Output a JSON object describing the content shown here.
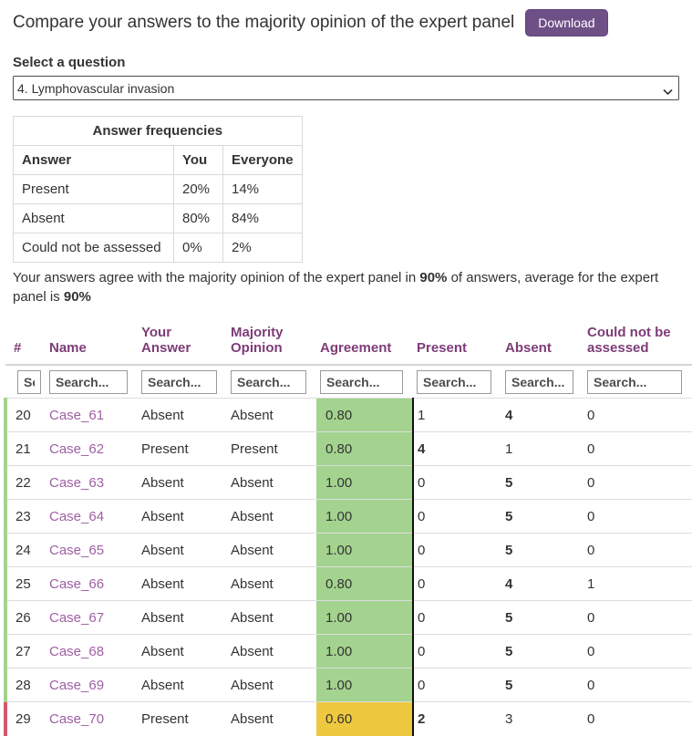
{
  "header": {
    "title": "Compare your answers to the majority opinion of the expert panel",
    "download_label": "Download"
  },
  "question_select": {
    "label": "Select a question",
    "selected": "4. Lymphovascular invasion"
  },
  "frequencies": {
    "title": "Answer frequencies",
    "columns": [
      "Answer",
      "You",
      "Everyone"
    ],
    "rows": [
      [
        "Present",
        "20%",
        "14%"
      ],
      [
        "Absent",
        "80%",
        "84%"
      ],
      [
        "Could not be assessed",
        "0%",
        "2%"
      ]
    ]
  },
  "summary": {
    "prefix": "Your answers agree with the majority opinion of the expert panel in ",
    "your_percent": "90%",
    "middle": " of answers, average for the expert panel is ",
    "panel_percent": "90%"
  },
  "cases_table": {
    "columns": [
      {
        "key": "num",
        "label": "#"
      },
      {
        "key": "name",
        "label": "Name"
      },
      {
        "key": "your_answer",
        "label": "Your\nAnswer"
      },
      {
        "key": "majority_opinion",
        "label": "Majority\nOpinion"
      },
      {
        "key": "agreement",
        "label": "Agreement"
      },
      {
        "key": "present",
        "label": "Present"
      },
      {
        "key": "absent",
        "label": "Absent"
      },
      {
        "key": "could_not_be_assessed",
        "label": "Could not be\nassessed"
      }
    ],
    "search_placeholder": "Search...",
    "rows": [
      {
        "num": "20",
        "name": "Case_61",
        "your_answer": "Absent",
        "majority_opinion": "Absent",
        "agreement": "0.80",
        "agreement_color": "green",
        "bar_color": "green",
        "present": {
          "v": "1",
          "bold": false
        },
        "absent": {
          "v": "4",
          "bold": true
        },
        "could_not_be_assessed": {
          "v": "0",
          "bold": false
        }
      },
      {
        "num": "21",
        "name": "Case_62",
        "your_answer": "Present",
        "majority_opinion": "Present",
        "agreement": "0.80",
        "agreement_color": "green",
        "bar_color": "green",
        "present": {
          "v": "4",
          "bold": true
        },
        "absent": {
          "v": "1",
          "bold": false
        },
        "could_not_be_assessed": {
          "v": "0",
          "bold": false
        }
      },
      {
        "num": "22",
        "name": "Case_63",
        "your_answer": "Absent",
        "majority_opinion": "Absent",
        "agreement": "1.00",
        "agreement_color": "green",
        "bar_color": "green",
        "present": {
          "v": "0",
          "bold": false
        },
        "absent": {
          "v": "5",
          "bold": true
        },
        "could_not_be_assessed": {
          "v": "0",
          "bold": false
        }
      },
      {
        "num": "23",
        "name": "Case_64",
        "your_answer": "Absent",
        "majority_opinion": "Absent",
        "agreement": "1.00",
        "agreement_color": "green",
        "bar_color": "green",
        "present": {
          "v": "0",
          "bold": false
        },
        "absent": {
          "v": "5",
          "bold": true
        },
        "could_not_be_assessed": {
          "v": "0",
          "bold": false
        }
      },
      {
        "num": "24",
        "name": "Case_65",
        "your_answer": "Absent",
        "majority_opinion": "Absent",
        "agreement": "1.00",
        "agreement_color": "green",
        "bar_color": "green",
        "present": {
          "v": "0",
          "bold": false
        },
        "absent": {
          "v": "5",
          "bold": true
        },
        "could_not_be_assessed": {
          "v": "0",
          "bold": false
        }
      },
      {
        "num": "25",
        "name": "Case_66",
        "your_answer": "Absent",
        "majority_opinion": "Absent",
        "agreement": "0.80",
        "agreement_color": "green",
        "bar_color": "green",
        "present": {
          "v": "0",
          "bold": false
        },
        "absent": {
          "v": "4",
          "bold": true
        },
        "could_not_be_assessed": {
          "v": "1",
          "bold": false
        }
      },
      {
        "num": "26",
        "name": "Case_67",
        "your_answer": "Absent",
        "majority_opinion": "Absent",
        "agreement": "1.00",
        "agreement_color": "green",
        "bar_color": "green",
        "present": {
          "v": "0",
          "bold": false
        },
        "absent": {
          "v": "5",
          "bold": true
        },
        "could_not_be_assessed": {
          "v": "0",
          "bold": false
        }
      },
      {
        "num": "27",
        "name": "Case_68",
        "your_answer": "Absent",
        "majority_opinion": "Absent",
        "agreement": "1.00",
        "agreement_color": "green",
        "bar_color": "green",
        "present": {
          "v": "0",
          "bold": false
        },
        "absent": {
          "v": "5",
          "bold": true
        },
        "could_not_be_assessed": {
          "v": "0",
          "bold": false
        }
      },
      {
        "num": "28",
        "name": "Case_69",
        "your_answer": "Absent",
        "majority_opinion": "Absent",
        "agreement": "1.00",
        "agreement_color": "green",
        "bar_color": "green",
        "present": {
          "v": "0",
          "bold": false
        },
        "absent": {
          "v": "5",
          "bold": true
        },
        "could_not_be_assessed": {
          "v": "0",
          "bold": false
        }
      },
      {
        "num": "29",
        "name": "Case_70",
        "your_answer": "Present",
        "majority_opinion": "Absent",
        "agreement": "0.60",
        "agreement_color": "yellow",
        "bar_color": "red",
        "present": {
          "v": "2",
          "bold": true
        },
        "absent": {
          "v": "3",
          "bold": false
        },
        "could_not_be_assessed": {
          "v": "0",
          "bold": false
        }
      }
    ]
  },
  "colors": {
    "accent_purple": "#6e5087",
    "header_purple": "#7d3c78",
    "link_purple": "#a05fa5",
    "agreement_green": "#a3d38e",
    "agreement_yellow": "#eec83f",
    "bar_green": "#a3d38e",
    "bar_red": "#d8566e"
  }
}
